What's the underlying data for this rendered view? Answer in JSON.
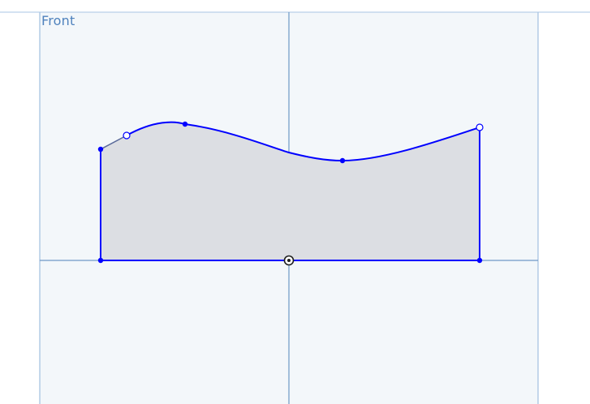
{
  "viewport": {
    "plane_name": "Front"
  },
  "colors": {
    "background": "#ffffff",
    "plane_fill": "#f3f7fa",
    "plane_border": "#8fb3d9",
    "axis_line": "#6e98c6",
    "sketch_line": "#0000ff",
    "region_fill": "#dcdee3",
    "point_fill": "#0000ff",
    "open_point_fill": "#ffffff",
    "construction_line": "#5a6a9a",
    "origin": "#1e1e1e"
  },
  "icons": {
    "origin": "origin-icon"
  }
}
